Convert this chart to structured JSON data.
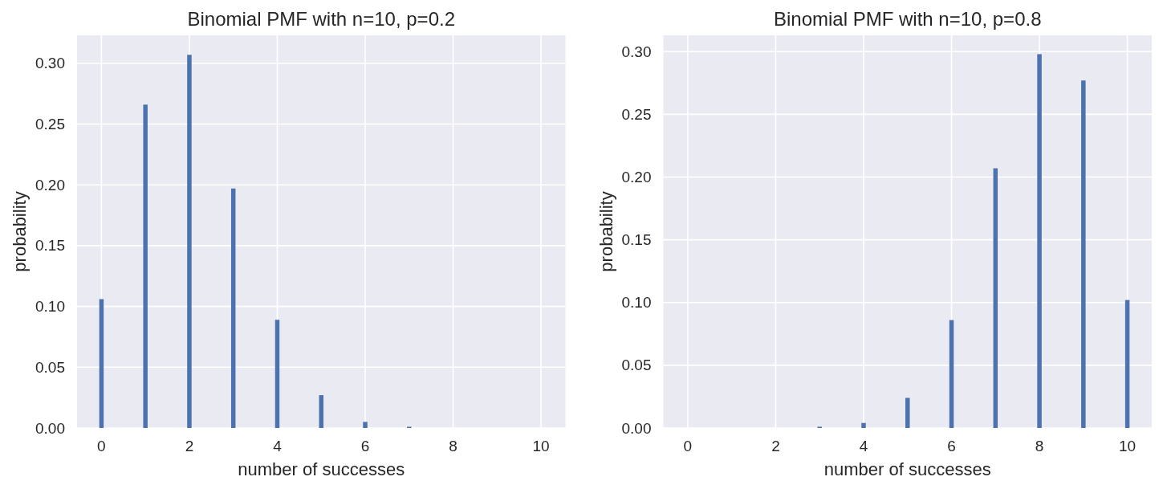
{
  "chart_data": [
    {
      "type": "bar",
      "title": "Binomial PMF with n=10, p=0.2",
      "xlabel": "number of successes",
      "ylabel": "probability",
      "x": [
        0,
        1,
        2,
        3,
        4,
        5,
        6,
        7
      ],
      "values": [
        0.106,
        0.266,
        0.307,
        0.197,
        0.089,
        0.027,
        0.005,
        0.001
      ],
      "color": "#4c72b0",
      "xlim": [
        -0.555,
        10.555
      ],
      "xticks": [
        0,
        2,
        4,
        6,
        8,
        10
      ],
      "ylim": [
        0,
        0.323
      ],
      "yticks": [
        {
          "value": 0,
          "label": "0.00"
        },
        {
          "value": 0.05,
          "label": "0.05"
        },
        {
          "value": 0.1,
          "label": "0.10"
        },
        {
          "value": 0.15,
          "label": "0.15"
        },
        {
          "value": 0.2,
          "label": "0.20"
        },
        {
          "value": 0.25,
          "label": "0.25"
        },
        {
          "value": 0.3,
          "label": "0.30"
        }
      ],
      "grid": true
    },
    {
      "type": "bar",
      "title": "Binomial PMF with n=10, p=0.8",
      "xlabel": "number of successes",
      "ylabel": "probability",
      "x": [
        3,
        4,
        5,
        6,
        7,
        8,
        9,
        10
      ],
      "values": [
        0.001,
        0.004,
        0.024,
        0.086,
        0.207,
        0.298,
        0.277,
        0.102
      ],
      "color": "#4c72b0",
      "xlim": [
        -0.555,
        10.555
      ],
      "xticks": [
        0,
        2,
        4,
        6,
        8,
        10
      ],
      "ylim": [
        0,
        0.313
      ],
      "yticks": [
        {
          "value": 0,
          "label": "0.00"
        },
        {
          "value": 0.05,
          "label": "0.05"
        },
        {
          "value": 0.1,
          "label": "0.10"
        },
        {
          "value": 0.15,
          "label": "0.15"
        },
        {
          "value": 0.2,
          "label": "0.20"
        },
        {
          "value": 0.25,
          "label": "0.25"
        },
        {
          "value": 0.3,
          "label": "0.30"
        }
      ],
      "grid": true
    }
  ]
}
